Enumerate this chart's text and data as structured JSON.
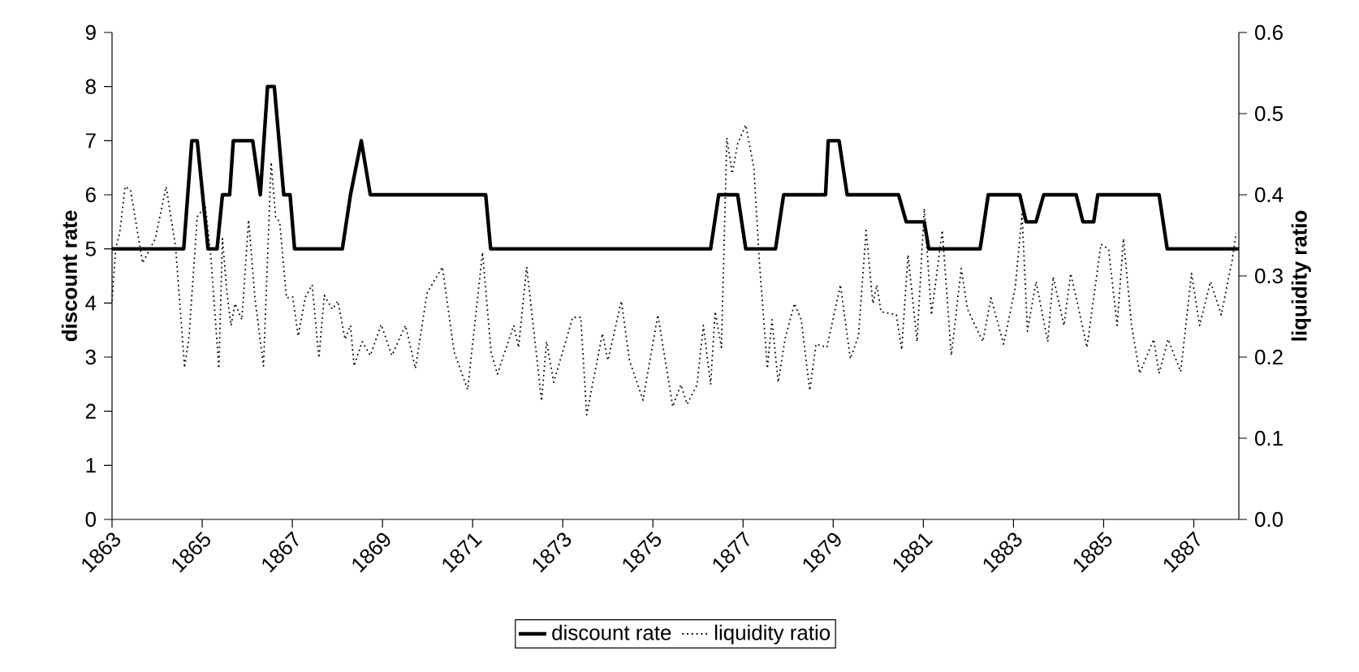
{
  "chart_data": {
    "type": "line",
    "xlim": [
      1863,
      1888
    ],
    "xticks": [
      1863,
      1865,
      1867,
      1869,
      1871,
      1873,
      1875,
      1877,
      1879,
      1881,
      1883,
      1885,
      1887
    ],
    "ylim": [
      0,
      9
    ],
    "yticks": [
      0,
      1,
      2,
      3,
      4,
      5,
      6,
      7,
      8,
      9
    ],
    "y2lim": [
      0,
      0.6
    ],
    "y2ticks": [
      {
        "value": 0,
        "label": "0.0"
      },
      0.1,
      0.2,
      0.3,
      0.4,
      0.5,
      0.6
    ],
    "ylabel": "discount rate",
    "y2label": "liquidity ratio",
    "legend": "bottom",
    "grid": false,
    "series": [
      {
        "name": "discount rate",
        "color": "#000000",
        "line_style": "solid",
        "x": [
          1863.0,
          1864.59,
          1864.77,
          1864.89,
          1865.13,
          1865.33,
          1865.45,
          1865.61,
          1865.69,
          1866.12,
          1866.29,
          1866.45,
          1866.6,
          1866.81,
          1866.95,
          1867.05,
          1868.11,
          1868.29,
          1868.53,
          1868.73,
          1871.29,
          1871.4,
          1876.28,
          1876.46,
          1876.88,
          1877.06,
          1877.72,
          1877.9,
          1878.83,
          1878.89,
          1879.13,
          1879.31,
          1880.45,
          1880.62,
          1881.02,
          1881.12,
          1882.26,
          1882.44,
          1883.14,
          1883.28,
          1883.5,
          1883.67,
          1884.39,
          1884.54,
          1884.78,
          1884.87,
          1886.23,
          1886.41,
          1888.0
        ],
        "values": [
          5,
          5,
          7,
          7,
          5,
          5,
          6,
          6,
          7,
          7,
          6,
          8,
          8,
          6,
          6,
          5,
          5,
          6,
          7,
          6,
          6,
          5,
          5,
          6,
          6,
          5,
          5,
          6,
          6,
          7,
          7,
          6,
          6,
          5.5,
          5.5,
          5,
          5,
          6,
          6,
          5.5,
          5.5,
          6,
          6,
          5.5,
          5.5,
          6,
          6,
          5,
          5
        ]
      },
      {
        "name": "liquidity ratio",
        "color": "#000000",
        "line_style": "dotted",
        "axis": "y2",
        "x": [
          1863.0,
          1863.08,
          1863.17,
          1863.29,
          1863.41,
          1863.68,
          1863.8,
          1863.96,
          1864.2,
          1864.41,
          1864.61,
          1864.71,
          1864.89,
          1865.07,
          1865.19,
          1865.37,
          1865.45,
          1865.55,
          1865.64,
          1865.73,
          1865.88,
          1866.03,
          1866.17,
          1866.36,
          1866.53,
          1866.63,
          1866.72,
          1866.87,
          1867.01,
          1867.13,
          1867.29,
          1867.44,
          1867.59,
          1867.71,
          1867.89,
          1868.01,
          1868.17,
          1868.29,
          1868.37,
          1868.55,
          1868.73,
          1868.97,
          1869.21,
          1869.51,
          1869.73,
          1869.99,
          1870.33,
          1870.59,
          1870.89,
          1871.22,
          1871.41,
          1871.55,
          1871.91,
          1872.02,
          1872.2,
          1872.53,
          1872.64,
          1872.8,
          1873.22,
          1873.4,
          1873.53,
          1873.88,
          1874.0,
          1874.3,
          1874.48,
          1874.78,
          1875.11,
          1875.44,
          1875.62,
          1875.76,
          1875.98,
          1876.12,
          1876.28,
          1876.38,
          1876.52,
          1876.64,
          1876.76,
          1876.88,
          1877.06,
          1877.24,
          1877.36,
          1877.54,
          1877.64,
          1877.78,
          1877.93,
          1878.14,
          1878.29,
          1878.48,
          1878.62,
          1878.86,
          1879.16,
          1879.38,
          1879.56,
          1879.73,
          1879.88,
          1879.97,
          1880.06,
          1880.4,
          1880.52,
          1880.66,
          1880.86,
          1881.02,
          1881.18,
          1881.42,
          1881.62,
          1881.84,
          1881.98,
          1882.32,
          1882.5,
          1882.78,
          1883.04,
          1883.19,
          1883.31,
          1883.5,
          1883.76,
          1883.88,
          1884.12,
          1884.27,
          1884.42,
          1884.63,
          1884.94,
          1885.11,
          1885.3,
          1885.44,
          1885.62,
          1885.8,
          1886.11,
          1886.23,
          1886.43,
          1886.71,
          1886.95,
          1887.13,
          1887.37,
          1887.61,
          1887.85,
          1887.94
        ],
        "values": [
          0.269,
          0.333,
          0.353,
          0.41,
          0.406,
          0.316,
          0.329,
          0.346,
          0.41,
          0.336,
          0.187,
          0.226,
          0.373,
          0.386,
          0.326,
          0.186,
          0.346,
          0.279,
          0.239,
          0.266,
          0.246,
          0.369,
          0.273,
          0.189,
          0.44,
          0.373,
          0.366,
          0.273,
          0.274,
          0.226,
          0.274,
          0.289,
          0.199,
          0.276,
          0.259,
          0.269,
          0.222,
          0.239,
          0.189,
          0.219,
          0.202,
          0.24,
          0.202,
          0.239,
          0.186,
          0.279,
          0.311,
          0.206,
          0.16,
          0.329,
          0.206,
          0.179,
          0.239,
          0.212,
          0.311,
          0.146,
          0.219,
          0.169,
          0.249,
          0.249,
          0.129,
          0.229,
          0.196,
          0.269,
          0.196,
          0.147,
          0.252,
          0.139,
          0.166,
          0.142,
          0.166,
          0.239,
          0.166,
          0.256,
          0.212,
          0.47,
          0.426,
          0.463,
          0.486,
          0.433,
          0.319,
          0.186,
          0.246,
          0.169,
          0.222,
          0.266,
          0.246,
          0.159,
          0.216,
          0.212,
          0.289,
          0.198,
          0.226,
          0.356,
          0.266,
          0.289,
          0.256,
          0.252,
          0.209,
          0.326,
          0.219,
          0.383,
          0.252,
          0.356,
          0.202,
          0.309,
          0.259,
          0.219,
          0.273,
          0.216,
          0.286,
          0.376,
          0.232,
          0.293,
          0.219,
          0.299,
          0.239,
          0.303,
          0.266,
          0.212,
          0.339,
          0.333,
          0.239,
          0.346,
          0.239,
          0.18,
          0.222,
          0.18,
          0.222,
          0.182,
          0.303,
          0.239,
          0.293,
          0.252,
          0.319,
          0.353
        ]
      }
    ]
  }
}
